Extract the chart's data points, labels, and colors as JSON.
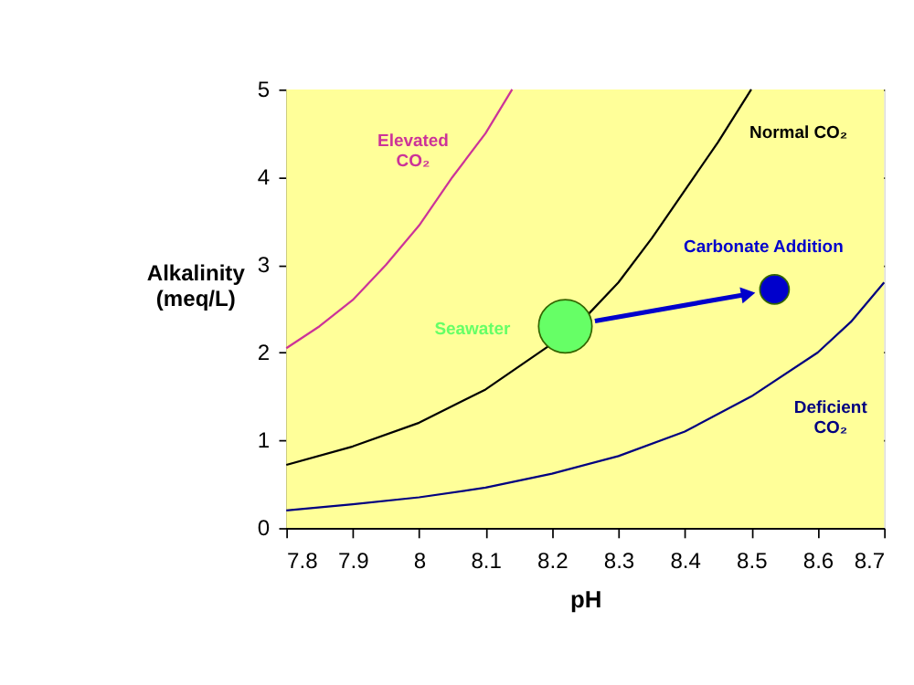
{
  "chart_data": {
    "type": "line",
    "xlabel": "pH",
    "ylabel": "Alkalinity\n(meq/L)",
    "xlim": [
      7.8,
      8.7
    ],
    "xticks": [
      7.8,
      7.9,
      8,
      8.1,
      8.2,
      8.3,
      8.4,
      8.5,
      8.6,
      8.7
    ],
    "ylim": [
      0,
      5
    ],
    "yticks": [
      0,
      1,
      2,
      3,
      4,
      5
    ],
    "grid": "y",
    "line_style": "solid",
    "series": [
      {
        "name": "Elevated\nCO₂",
        "color": "#cc3399",
        "x": [
          7.8,
          7.85,
          7.9,
          7.95,
          8.0,
          8.05,
          8.1,
          8.14
        ],
        "values": [
          2.05,
          2.3,
          2.6,
          3.0,
          3.45,
          4.0,
          4.5,
          5.0
        ]
      },
      {
        "name": "Normal CO₂",
        "color": "#000000",
        "x": [
          7.8,
          7.9,
          8.0,
          8.1,
          8.2,
          8.25,
          8.3,
          8.35,
          8.4,
          8.45,
          8.5
        ],
        "values": [
          0.72,
          0.93,
          1.2,
          1.58,
          2.1,
          2.4,
          2.8,
          3.3,
          3.85,
          4.4,
          5.0
        ]
      },
      {
        "name": "Deficient\nCO₂",
        "color": "#000080",
        "x": [
          7.8,
          7.9,
          8.0,
          8.1,
          8.2,
          8.3,
          8.4,
          8.5,
          8.6,
          8.65,
          8.7
        ],
        "values": [
          0.2,
          0.27,
          0.35,
          0.46,
          0.62,
          0.82,
          1.1,
          1.5,
          2.0,
          2.35,
          2.8
        ]
      },
      {
        "name": "Seawater",
        "type": "bubble",
        "color": "#66ff66",
        "x": [
          8.22
        ],
        "values": [
          2.3
        ],
        "sizes": [
          1
        ]
      },
      {
        "name": "Carbonate Addition",
        "type": "bubble",
        "color": "#0000cc",
        "x": [
          8.535
        ],
        "values": [
          2.72
        ],
        "sizes": [
          0.3
        ]
      }
    ]
  }
}
